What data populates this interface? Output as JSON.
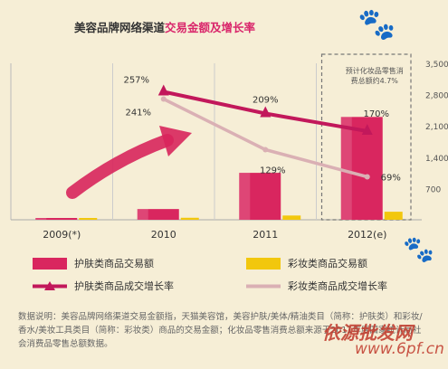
{
  "title_part1": "美容品牌网络渠道",
  "title_part2": "交易金额及增长率",
  "colors": {
    "title_dark": "#333333",
    "title_accent": "#d9266b",
    "skincare_bar": "#d9265f",
    "makeup_bar": "#f2c70d",
    "skincare_line": "#c2185b",
    "makeup_line": "#dab0b4",
    "arrow": "#d8255c",
    "forecast_box": "#777777"
  },
  "chart_data": {
    "type": "bar",
    "categories": [
      "2009(*)",
      "2010",
      "2011",
      "2012(e)"
    ],
    "y_ticks": [
      "3,500",
      "2,800",
      "2,100",
      "1,400",
      "700"
    ],
    "ylim": [
      0,
      3500
    ],
    "series": [
      {
        "name": "护肤类商品交易额",
        "kind": "bar",
        "values": [
          40,
          240,
          1050,
          2300
        ]
      },
      {
        "name": "彩妆类商品交易额",
        "kind": "bar",
        "values": [
          5,
          45,
          95,
          180
        ]
      },
      {
        "name": "护肤类商品成交增长率",
        "kind": "line",
        "values": [
          null,
          257,
          209,
          170
        ],
        "labels": [
          "",
          "257%",
          "209%",
          "170%"
        ]
      },
      {
        "name": "彩妆类商品成交增长率",
        "kind": "line",
        "values": [
          null,
          241,
          129,
          69
        ],
        "labels": [
          "",
          "241%",
          "129%",
          "69%"
        ]
      }
    ],
    "annotation": "预计化妆品零售消费总额约4.7%",
    "legend_position": "bottom"
  },
  "legend": {
    "skincare_bar": "护肤类商品交易额",
    "makeup_bar": "彩妆类商品交易额",
    "skincare_line": "护肤类商品成交增长率",
    "makeup_line": "彩妆类商品成交增长率"
  },
  "note": "数据说明：美容品牌网络渠道交易金额指，天猫美容馆，美容护肤/美体/精油类目（简称：护肤类）和彩妆/香水/美妆工具类目（简称：彩妆类）商品的交易金额；化妆品零售消费总额来源于2011年度国家统计局社会消费品零售总额数据。",
  "watermark_line1": "依源批发网",
  "watermark_line2": "www.6pf.cn"
}
